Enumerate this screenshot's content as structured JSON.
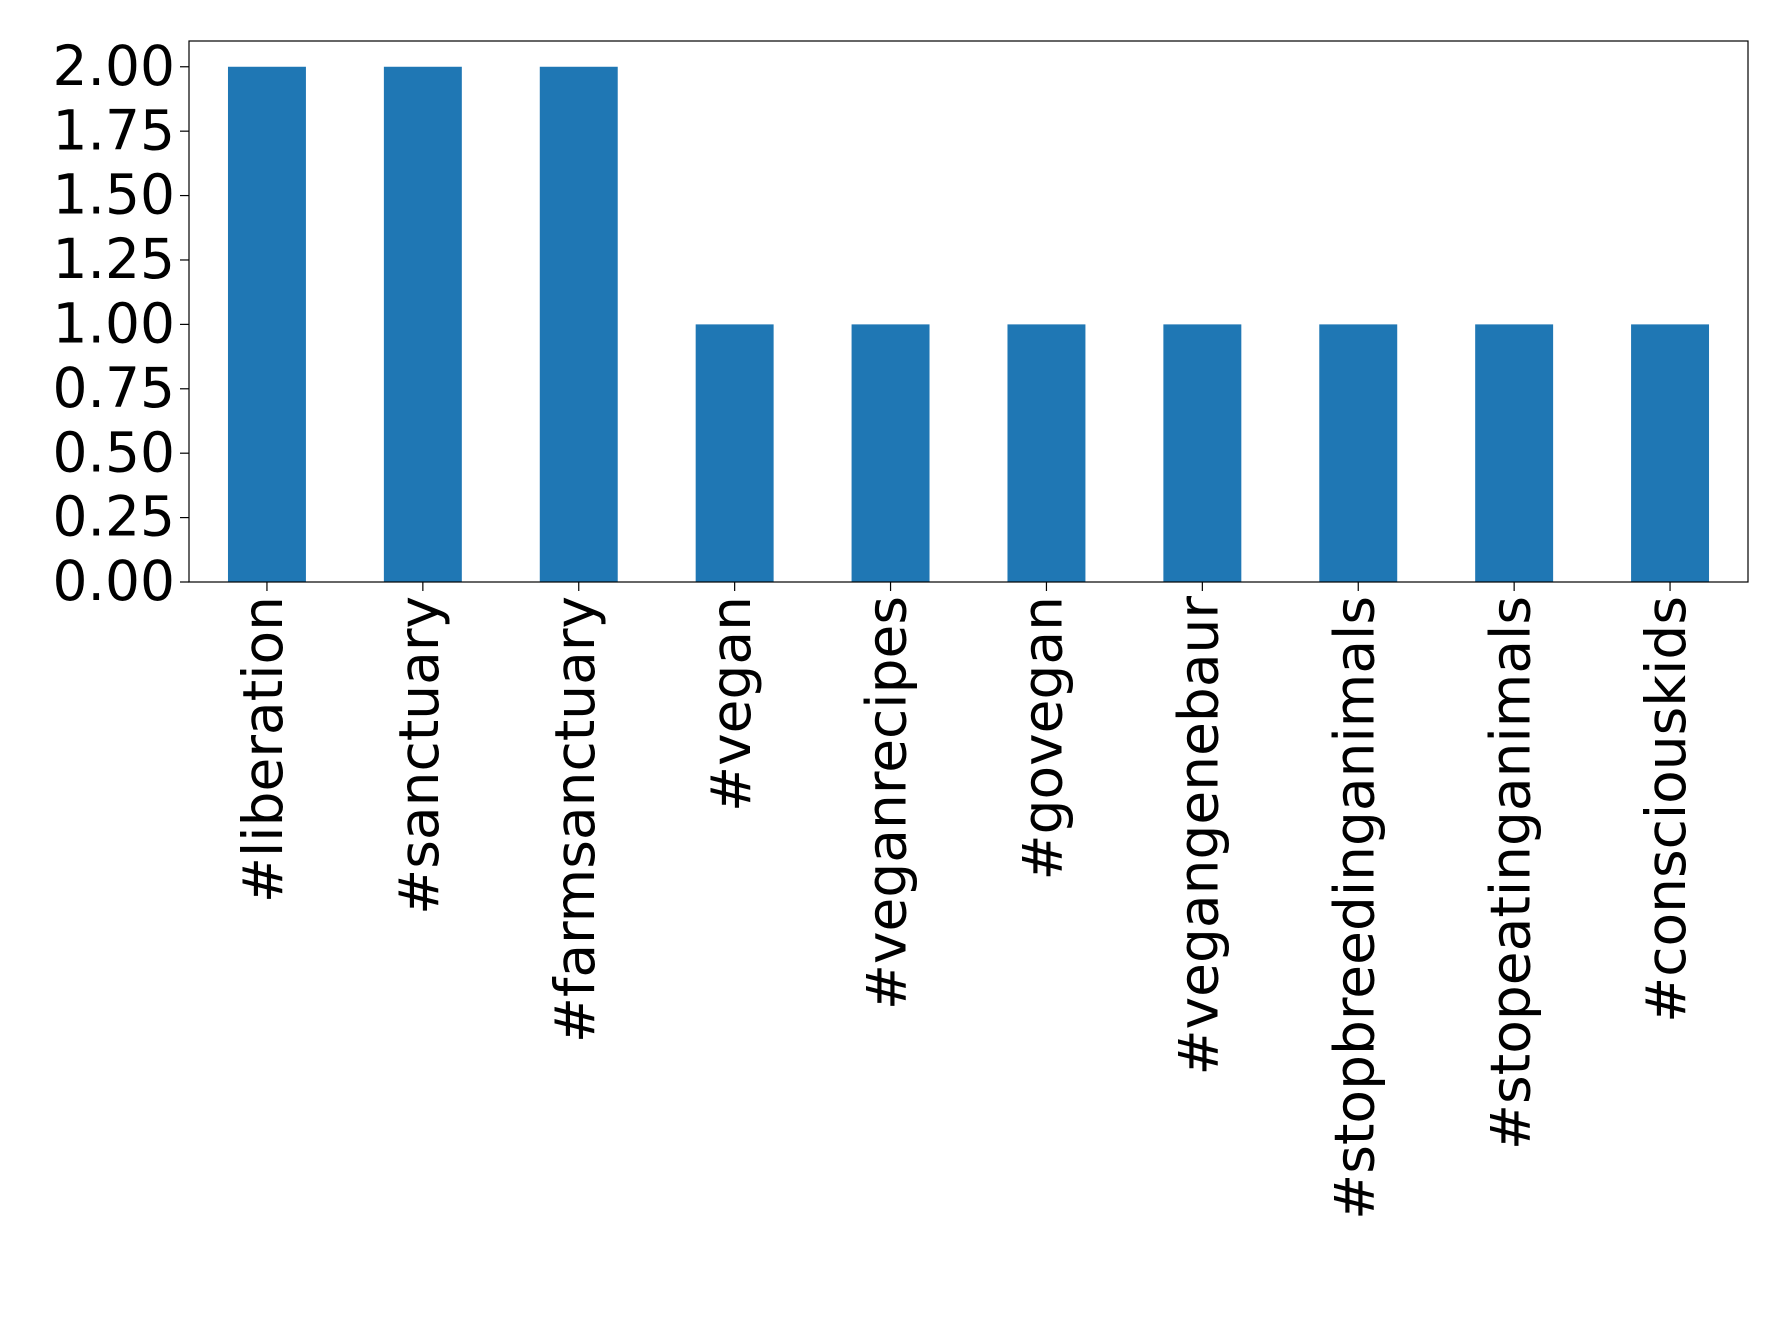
{
  "chart_data": {
    "type": "bar",
    "categories": [
      "#liberation",
      "#sanctuary",
      "#farmsanctuary",
      "#vegan",
      "#veganrecipes",
      "#govegan",
      "#vegangenebaur",
      "#stopbreedinganimals",
      "#stopeatinganimals",
      "#consciouskids"
    ],
    "values": [
      2,
      2,
      2,
      1,
      1,
      1,
      1,
      1,
      1,
      1
    ],
    "color": "#1f77b4",
    "ylim": [
      0,
      2.1
    ],
    "yticks": [
      {
        "value": 0,
        "label": "0.00"
      },
      {
        "value": 0.25,
        "label": "0.25"
      },
      {
        "value": 0.5,
        "label": "0.50"
      },
      {
        "value": 0.75,
        "label": "0.75"
      },
      {
        "value": 1,
        "label": "1.00"
      },
      {
        "value": 1.25,
        "label": "1.25"
      },
      {
        "value": 1.5,
        "label": "1.50"
      },
      {
        "value": 1.75,
        "label": "1.75"
      },
      {
        "value": 2,
        "label": "2.00"
      }
    ],
    "grid": false
  }
}
